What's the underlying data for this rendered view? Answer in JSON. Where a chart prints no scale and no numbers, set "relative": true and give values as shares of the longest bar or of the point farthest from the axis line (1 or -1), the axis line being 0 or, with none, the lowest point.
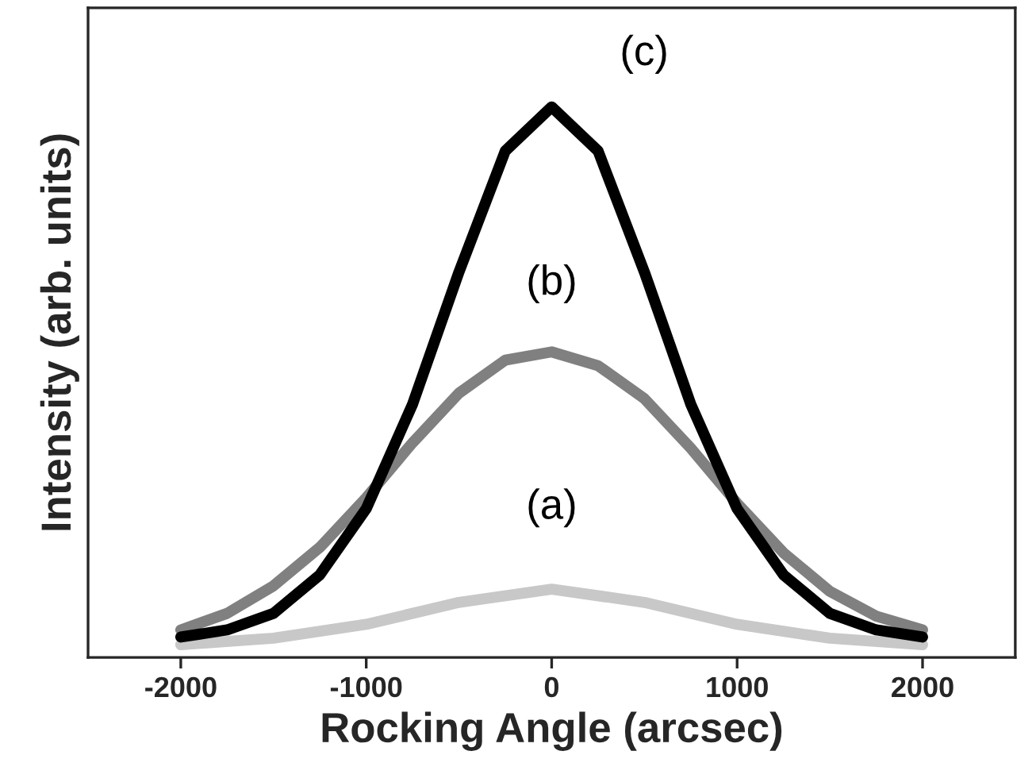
{
  "chart_data": {
    "type": "line",
    "xlabel": "Rocking Angle (arcsec)",
    "ylabel": "Intensity (arb. units)",
    "relative": true,
    "xlim": [
      -2500,
      2500
    ],
    "xticks": [
      -2000,
      -1000,
      0,
      1000,
      2000
    ],
    "grid": false,
    "legend": false,
    "line_style": "solid",
    "series": [
      {
        "name": "(a)",
        "color": "#c8c8c8",
        "x": [
          -2000,
          -1500,
          -1000,
          -500,
          0,
          500,
          1000,
          1500,
          2000
        ],
        "values": [
          0.023,
          0.035,
          0.06,
          0.1,
          0.124,
          0.1,
          0.06,
          0.035,
          0.023
        ]
      },
      {
        "name": "(b)",
        "color": "#808080",
        "x": [
          -2000,
          -1750,
          -1500,
          -1250,
          -1000,
          -750,
          -500,
          -250,
          0,
          250,
          500,
          750,
          1000,
          1250,
          1500,
          1750,
          2000
        ],
        "values": [
          0.05,
          0.08,
          0.13,
          0.2,
          0.29,
          0.39,
          0.48,
          0.54,
          0.555,
          0.53,
          0.47,
          0.38,
          0.28,
          0.19,
          0.12,
          0.075,
          0.05
        ]
      },
      {
        "name": "(c)",
        "color": "#000000",
        "x": [
          -2000,
          -1750,
          -1500,
          -1250,
          -1000,
          -750,
          -500,
          -250,
          0,
          250,
          500,
          750,
          1000,
          1250,
          1500,
          1750,
          2000
        ],
        "values": [
          0.037,
          0.05,
          0.08,
          0.15,
          0.27,
          0.46,
          0.7,
          0.92,
          1.0,
          0.92,
          0.7,
          0.46,
          0.27,
          0.15,
          0.08,
          0.05,
          0.037
        ]
      }
    ]
  }
}
